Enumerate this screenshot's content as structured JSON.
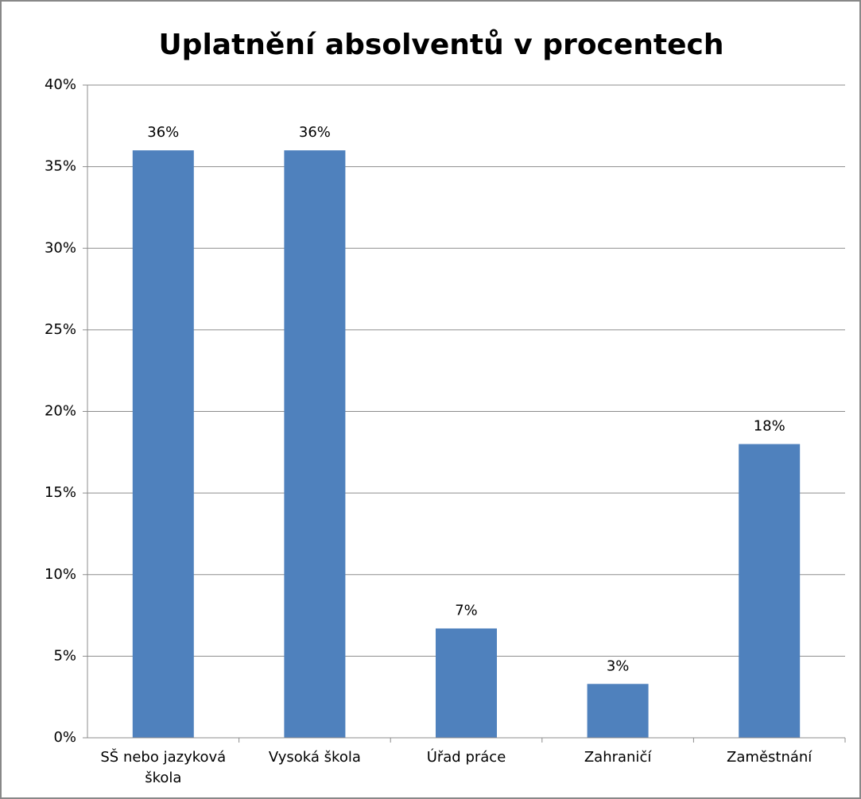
{
  "chart_data": {
    "type": "bar",
    "title": "Uplatnění absolventů v procentech",
    "categories": [
      "SŠ nebo jazyková škola",
      "Vysoká škola",
      "Úřad práce",
      "Zahraničí",
      "Zaměstnání"
    ],
    "values": [
      36,
      36,
      6.7,
      3.3,
      18
    ],
    "value_labels": [
      "36%",
      "36%",
      "7%",
      "3%",
      "18%"
    ],
    "color": "#4f81bd",
    "ylim": [
      0,
      40
    ],
    "yticks": [
      {
        "value": 0,
        "label": "0%"
      },
      {
        "value": 5,
        "label": "5%"
      },
      {
        "value": 10,
        "label": "10%"
      },
      {
        "value": 15,
        "label": "15%"
      },
      {
        "value": 20,
        "label": "20%"
      },
      {
        "value": 25,
        "label": "25%"
      },
      {
        "value": 30,
        "label": "30%"
      },
      {
        "value": 35,
        "label": "35%"
      },
      {
        "value": 40,
        "label": "40%"
      }
    ],
    "grid": true
  }
}
